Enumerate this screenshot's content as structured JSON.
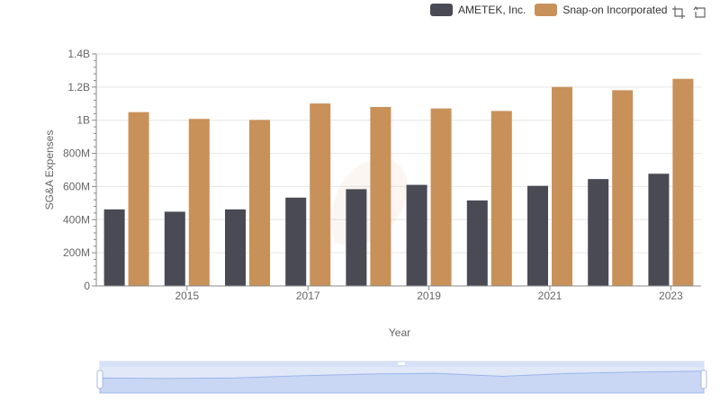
{
  "chart_data": {
    "type": "bar",
    "xlabel": "Year",
    "ylabel": "SG&A Expenses",
    "ylim": [
      0,
      1400000000
    ],
    "y_tick_labels": [
      "0",
      "200M",
      "400M",
      "600M",
      "800M",
      "1B",
      "1.2B",
      "1.4B"
    ],
    "x": [
      2014,
      2015,
      2016,
      2017,
      2018,
      2019,
      2020,
      2021,
      2022,
      2023
    ],
    "x_tick_labels": [
      "2015",
      "2017",
      "2019",
      "2021",
      "2023"
    ],
    "grid": true,
    "legend_position": "top-right",
    "series": [
      {
        "name": "AMETEK, Inc.",
        "color": "#4a4a55",
        "values": [
          462000000,
          448000000,
          462000000,
          533000000,
          584000000,
          610000000,
          516000000,
          604000000,
          645000000,
          677000000
        ]
      },
      {
        "name": "Snap-on Incorporated",
        "color": "#c8915a",
        "values": [
          1049000000,
          1008000000,
          1002000000,
          1101000000,
          1080000000,
          1071000000,
          1056000000,
          1201000000,
          1181000000,
          1250000000
        ]
      }
    ]
  },
  "toolbox": {
    "zoom_icon": "zoom-icon",
    "restore_icon": "restore-icon"
  },
  "datazoom": {
    "range_start": 0,
    "range_end": 100
  }
}
